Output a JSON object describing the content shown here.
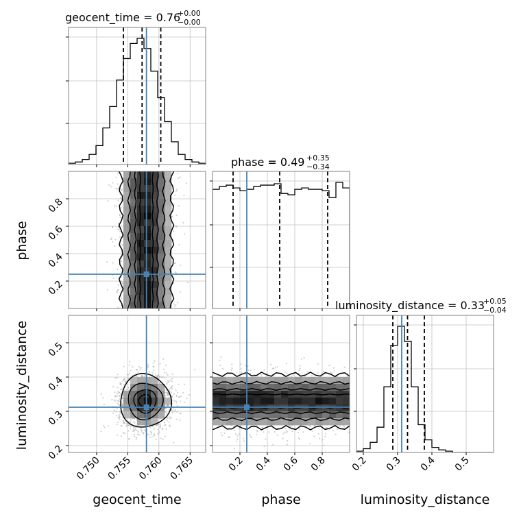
{
  "colors": {
    "truth": "#4682b4",
    "hist": "#000000",
    "grid": "#c0c0c0",
    "frame": "#808080",
    "scatter": "#9a9a9a"
  },
  "chart_data": {
    "type": "corner",
    "parameters": [
      "geocent_time",
      "phase",
      "luminosity_distance"
    ],
    "titles": [
      {
        "param": "geocent_time",
        "text": "geocent_time = 0.76",
        "plus": "+0.00",
        "minus": "−0.00"
      },
      {
        "param": "phase",
        "text": "phase = 0.49",
        "plus": "+0.35",
        "minus": "−0.34"
      },
      {
        "param": "luminosity_distance",
        "text": "luminosity_distance = 0.33",
        "plus": "+0.05",
        "minus": "−0.04"
      }
    ],
    "truths": {
      "geocent_time": 0.758,
      "phase": 0.25,
      "luminosity_distance": 0.312
    },
    "quantiles": {
      "geocent_time": [
        0.7543,
        0.7573,
        0.7603
      ],
      "phase": [
        0.15,
        0.49,
        0.84
      ],
      "luminosity_distance": [
        0.286,
        0.329,
        0.378
      ]
    },
    "axis_ranges": {
      "geocent_time": [
        0.7455,
        0.7675
      ],
      "phase": [
        0.0,
        1.0
      ],
      "luminosity_distance": [
        0.18,
        0.58
      ]
    },
    "ticks": {
      "geocent_time": {
        "values": [
          0.75,
          0.755,
          0.76,
          0.765
        ],
        "labels": [
          "0.750",
          "0.755",
          "0.760",
          "0.765"
        ]
      },
      "phase": {
        "values": [
          0.2,
          0.4,
          0.6,
          0.8
        ],
        "labels": [
          "0.2",
          "0.4",
          "0.6",
          "0.8"
        ]
      },
      "luminosity_distance": {
        "values": [
          0.2,
          0.3,
          0.4,
          0.5
        ],
        "labels": [
          "0.2",
          "0.3",
          "0.4",
          "0.5"
        ]
      }
    },
    "histograms": {
      "geocent_time": {
        "bin_start": 0.7455,
        "bin_width": 0.0011,
        "counts": [
          1,
          2,
          4,
          8,
          15,
          29,
          46,
          67,
          84,
          96,
          100,
          92,
          74,
          53,
          34,
          18,
          8,
          4,
          2,
          1
        ]
      },
      "phase": {
        "bin_start": 0.0,
        "bin_width": 0.05,
        "counts": [
          86,
          88,
          89,
          87,
          85,
          86,
          88,
          89,
          89,
          90,
          83,
          82,
          86,
          87,
          86,
          86,
          85,
          80,
          91,
          87
        ]
      },
      "luminosity_distance": {
        "bin_start": 0.18,
        "bin_width": 0.02,
        "counts": [
          1,
          3,
          8,
          20,
          52,
          85,
          100,
          88,
          52,
          22,
          10,
          4,
          2,
          1,
          0,
          0,
          0,
          0,
          0,
          0
        ]
      }
    },
    "density_2d": [
      {
        "x": "geocent_time",
        "y": "phase",
        "center": [
          0.758,
          0.5
        ],
        "spread": [
          0.0022,
          0.5
        ]
      },
      {
        "x": "geocent_time",
        "y": "luminosity_distance",
        "center": [
          0.7578,
          0.33
        ],
        "spread": [
          0.0022,
          0.042
        ]
      },
      {
        "x": "phase",
        "y": "luminosity_distance",
        "center": [
          0.5,
          0.33
        ],
        "spread": [
          0.5,
          0.042
        ]
      }
    ],
    "axis_labels": {
      "geocent_time": "geocent_time",
      "phase": "phase",
      "luminosity_distance": "luminosity_distance"
    },
    "grid": true
  }
}
